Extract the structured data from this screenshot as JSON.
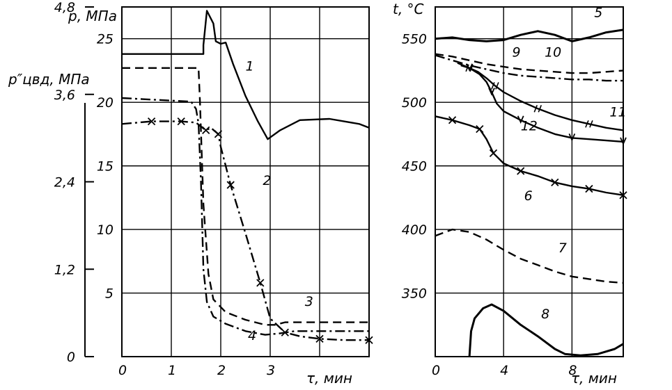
{
  "chart_data": [
    {
      "type": "line",
      "panel": "left",
      "x_label": "τ, мин",
      "x_ticks": [
        "0",
        "1",
        "2",
        "3"
      ],
      "xlim": [
        0,
        5
      ],
      "y_label": "p, МПа",
      "y_ticks": [
        "5",
        "10",
        "15",
        "20",
        "25"
      ],
      "ylim": [
        0,
        27.5
      ],
      "y2_label": "p″цвд, МПа",
      "y2_ticks": [
        "0",
        "1,2",
        "2,4",
        "3,6",
        "4,8"
      ],
      "y2lim": [
        0,
        4.8
      ],
      "grid": true,
      "series": [
        {
          "name": "1",
          "style": "solid",
          "x": [
            0,
            1.65,
            1.65,
            1.72,
            1.85,
            1.9,
            2.0,
            2.1,
            2.25,
            2.5,
            2.75,
            2.95,
            3.2,
            3.6,
            4.2,
            4.8,
            5.0
          ],
          "y": [
            23.8,
            23.8,
            24.5,
            27.2,
            26.2,
            24.8,
            24.6,
            24.7,
            23.0,
            20.5,
            18.5,
            17.1,
            17.8,
            18.6,
            18.7,
            18.3,
            18.0
          ]
        },
        {
          "name": "2",
          "style": "dash-dot-x",
          "x": [
            0,
            0.6,
            1.0,
            1.2,
            1.5,
            1.7,
            1.8,
            1.95,
            2.0,
            2.2,
            2.5,
            2.8,
            3.0,
            3.3,
            3.6,
            4.0,
            4.5,
            5.0
          ],
          "y": [
            18.3,
            18.5,
            18.5,
            18.5,
            18.4,
            17.8,
            18.0,
            17.5,
            16.5,
            13.5,
            9.7,
            5.8,
            3.0,
            1.9,
            1.6,
            1.4,
            1.3,
            1.3
          ]
        },
        {
          "name": "3",
          "style": "dashed",
          "x": [
            0,
            1.55,
            1.58,
            1.65,
            1.75,
            1.85,
            2.1,
            2.5,
            2.9,
            3.1,
            3.3,
            4.0,
            5.0
          ],
          "y": [
            22.7,
            22.7,
            20.0,
            12.0,
            6.5,
            4.5,
            3.5,
            2.9,
            2.5,
            2.5,
            2.7,
            2.7,
            2.7
          ]
        },
        {
          "name": "4",
          "style": "dash-dot",
          "p2_x": [
            0,
            1.4,
            1.5,
            1.55,
            1.6,
            1.65,
            1.72,
            1.85,
            2.1,
            2.5,
            2.9,
            3.2,
            3.5,
            4.0,
            5.0
          ],
          "p2_y": [
            3.55,
            3.5,
            3.4,
            3.2,
            2.4,
            1.2,
            0.75,
            0.55,
            0.45,
            0.35,
            0.3,
            0.32,
            0.35,
            0.35,
            0.35
          ]
        }
      ],
      "annotations": [
        {
          "text": "1",
          "x": 2.5,
          "y": 22.5
        },
        {
          "text": "2",
          "x": 2.85,
          "y": 13.5
        },
        {
          "text": "3",
          "x": 3.7,
          "y": 4.0
        },
        {
          "text": "4",
          "x": 2.55,
          "y": 1.3
        }
      ]
    },
    {
      "type": "line",
      "panel": "right",
      "x_label": "τ, мин",
      "x_ticks": [
        "0",
        "4",
        "8"
      ],
      "xlim": [
        0,
        11
      ],
      "y_label": "t, °C",
      "y_ticks": [
        "350",
        "400",
        "450",
        "500",
        "550"
      ],
      "ylim": [
        300,
        575
      ],
      "grid": true,
      "series": [
        {
          "name": "5",
          "style": "solid",
          "x": [
            0,
            1,
            2,
            3,
            4,
            5,
            6,
            7,
            8,
            9,
            10,
            11
          ],
          "y": [
            550,
            551,
            549,
            548,
            549,
            553,
            556,
            553,
            548,
            551,
            555,
            557
          ]
        },
        {
          "name": "6",
          "style": "solid-x",
          "x": [
            0,
            1,
            2,
            2.6,
            3,
            3.4,
            4,
            5,
            6,
            7,
            8,
            9,
            10,
            11
          ],
          "y": [
            489,
            486,
            482,
            479,
            471,
            460,
            452,
            446,
            442,
            437,
            434,
            432,
            429,
            427
          ]
        },
        {
          "name": "7",
          "style": "dashed",
          "x": [
            0,
            1,
            2,
            3,
            4,
            5,
            6,
            7,
            8,
            9,
            10,
            11
          ],
          "y": [
            395,
            400,
            398,
            392,
            384,
            377,
            372,
            367,
            363,
            361,
            359,
            358
          ]
        },
        {
          "name": "8",
          "style": "solid",
          "x": [
            2,
            2.1,
            2.3,
            2.8,
            3.3,
            4,
            5,
            6,
            7,
            7.6,
            8.5,
            9.5,
            10.5,
            11
          ],
          "y": [
            300,
            320,
            330,
            338,
            341,
            336,
            325,
            316,
            306,
            302,
            301,
            302,
            306,
            310
          ]
        },
        {
          "name": "9",
          "style": "dashed",
          "x": [
            0,
            1,
            2,
            3,
            4,
            5,
            6,
            7,
            8,
            9,
            10,
            11
          ],
          "y": [
            538,
            536,
            533,
            530,
            528,
            526,
            525,
            524,
            523,
            523,
            524,
            525
          ]
        },
        {
          "name": "10",
          "style": "dash-dot",
          "x": [
            0,
            1,
            2,
            3,
            4,
            5,
            6,
            7,
            8,
            9,
            10,
            11
          ],
          "y": [
            537,
            533,
            529,
            526,
            523,
            521,
            520,
            519,
            518,
            518,
            517,
            517
          ]
        },
        {
          "name": "11",
          "style": "solid-slash",
          "x": [
            1.5,
            2,
            2.5,
            3,
            3.5,
            4,
            5,
            6,
            7,
            8,
            9,
            10,
            11
          ],
          "y": [
            529,
            527,
            524,
            519,
            513,
            508,
            501,
            495,
            490,
            486,
            483,
            480,
            478
          ]
        },
        {
          "name": "12",
          "style": "solid-v",
          "x": [
            1.3,
            2,
            2.6,
            3,
            3.3,
            3.6,
            4,
            5,
            6,
            7,
            8,
            9,
            10,
            11
          ],
          "y": [
            531,
            527,
            522,
            516,
            508,
            499,
            493,
            486,
            480,
            475,
            472,
            471,
            470,
            469
          ]
        }
      ],
      "annotations": [
        {
          "text": "5",
          "x": 9.3,
          "y": 567
        },
        {
          "text": "6",
          "x": 5.2,
          "y": 423
        },
        {
          "text": "7",
          "x": 7.2,
          "y": 382
        },
        {
          "text": "8",
          "x": 6.2,
          "y": 330
        },
        {
          "text": "9",
          "x": 4.5,
          "y": 536
        },
        {
          "text": "10",
          "x": 6.4,
          "y": 536
        },
        {
          "text": "11",
          "x": 10.2,
          "y": 489
        },
        {
          "text": "12",
          "x": 5.0,
          "y": 478
        }
      ]
    }
  ]
}
